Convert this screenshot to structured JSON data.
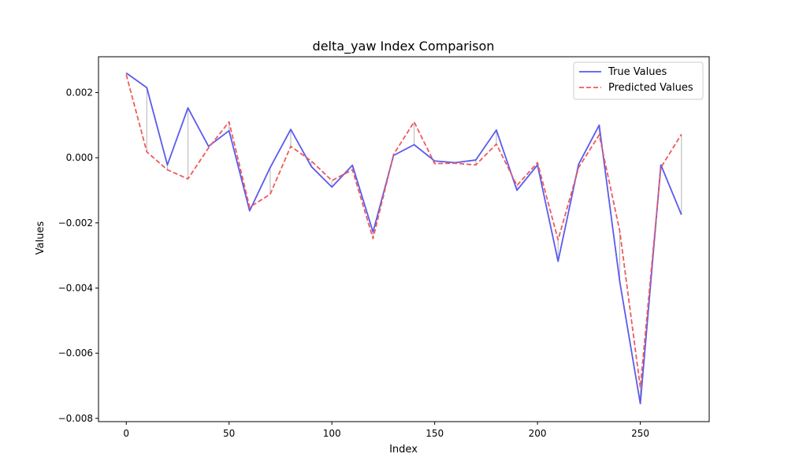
{
  "chart_data": {
    "type": "line",
    "title": "delta_yaw Index Comparison",
    "xlabel": "Index",
    "ylabel": "Values",
    "xlim": [
      -13.5,
      283.5
    ],
    "ylim": [
      -0.0081,
      0.0031
    ],
    "xticks": [
      0,
      50,
      100,
      150,
      200,
      250
    ],
    "xtick_labels": [
      "0",
      "50",
      "100",
      "150",
      "200",
      "250"
    ],
    "yticks": [
      0.002,
      0.0,
      -0.002,
      -0.004,
      -0.006,
      -0.008
    ],
    "ytick_labels": [
      "0.002",
      "0.000",
      "−0.002",
      "−0.004",
      "−0.006",
      "−0.008"
    ],
    "grid": false,
    "legend_position": "upper right",
    "x": [
      0,
      10,
      20,
      30,
      40,
      50,
      60,
      70,
      80,
      90,
      100,
      110,
      120,
      130,
      140,
      150,
      160,
      170,
      180,
      190,
      200,
      210,
      220,
      230,
      240,
      250,
      260,
      270
    ],
    "series": [
      {
        "name": "True Values",
        "color": "#5a5af0",
        "style": "solid",
        "values": [
          0.0026,
          0.00215,
          -0.00022,
          0.00153,
          0.00035,
          0.00083,
          -0.00163,
          -0.0003,
          0.00087,
          -0.00027,
          -0.0009,
          -0.00023,
          -0.00228,
          7e-05,
          0.0004,
          -0.0001,
          -0.00015,
          -7e-05,
          0.00085,
          -0.001,
          -0.00022,
          -0.00318,
          -0.0002,
          0.001,
          -0.0038,
          -0.00755,
          -0.00022,
          -0.00175
        ]
      },
      {
        "name": "Predicted Values",
        "color": "#f05a5a",
        "style": "dashed",
        "values": [
          0.00255,
          0.00018,
          -0.00037,
          -0.00065,
          0.0003,
          0.0011,
          -0.00152,
          -0.00112,
          0.00035,
          -0.0001,
          -0.0007,
          -0.00037,
          -0.00248,
          0.0001,
          0.0011,
          -0.00018,
          -0.00017,
          -0.00022,
          0.00042,
          -0.00085,
          -0.00015,
          -0.00252,
          -0.0003,
          0.0007,
          -0.00225,
          -0.00705,
          -0.0003,
          0.00072
        ]
      }
    ],
    "difference_line_color": "#c0c0c0"
  }
}
